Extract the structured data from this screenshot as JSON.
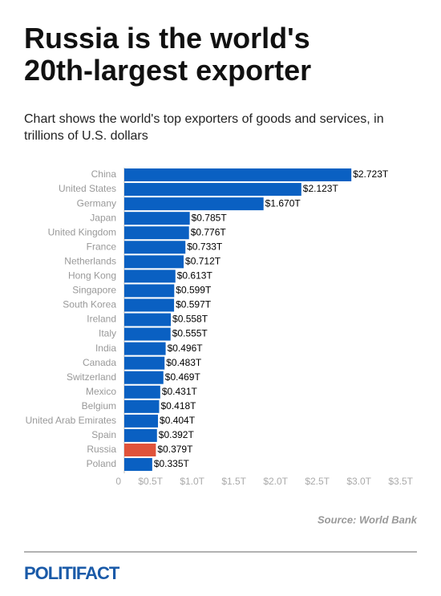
{
  "chart_data": {
    "type": "hbar",
    "title": "Russia is the world's 20th-largest exporter",
    "subtitle": "Chart shows the world's top exporters of goods and services, in trillions of U.S. dollars",
    "source": "Source: World Bank",
    "logo": "POLITIFACT",
    "categories": [
      "China",
      "United States",
      "Germany",
      "Japan",
      "United Kingdom",
      "France",
      "Netherlands",
      "Hong Kong",
      "Singapore",
      "South Korea",
      "Ireland",
      "Italy",
      "India",
      "Canada",
      "Switzerland",
      "Mexico",
      "Belgium",
      "United Arab Emirates",
      "Spain",
      "Russia",
      "Poland"
    ],
    "values": [
      2.723,
      2.123,
      1.67,
      0.785,
      0.776,
      0.733,
      0.712,
      0.613,
      0.599,
      0.597,
      0.558,
      0.555,
      0.496,
      0.483,
      0.469,
      0.431,
      0.418,
      0.404,
      0.392,
      0.379,
      0.335
    ],
    "value_labels": [
      "$2.723T",
      "$2.123T",
      "$1.670T",
      "$0.785T",
      "$0.776T",
      "$0.733T",
      "$0.712T",
      "$0.613T",
      "$0.599T",
      "$0.597T",
      "$0.558T",
      "$0.555T",
      "$0.496T",
      "$0.483T",
      "$0.469T",
      "$0.431T",
      "$0.418T",
      "$0.404T",
      "$0.392T",
      "$0.379T",
      "$0.335T"
    ],
    "colors": [
      "#0a60c2",
      "#0a60c2",
      "#0a60c2",
      "#0a60c2",
      "#0a60c2",
      "#0a60c2",
      "#0a60c2",
      "#0a60c2",
      "#0a60c2",
      "#0a60c2",
      "#0a60c2",
      "#0a60c2",
      "#0a60c2",
      "#0a60c2",
      "#0a60c2",
      "#0a60c2",
      "#0a60c2",
      "#0a60c2",
      "#0a60c2",
      "#e0533a",
      "#0a60c2"
    ],
    "xlim": [
      0,
      3.5
    ],
    "xticks": [
      0,
      {
        "value": 0.5,
        "label": "$0.5T"
      },
      {
        "value": 1.0,
        "label": "$1.0T"
      },
      {
        "value": 1.5,
        "label": "$1.5T"
      },
      {
        "value": 2.0,
        "label": "$2.0T"
      },
      {
        "value": 2.5,
        "label": "$2.5T"
      },
      {
        "value": 3.0,
        "label": "$3.0T"
      },
      {
        "value": 3.5,
        "label": "$3.5T"
      }
    ]
  }
}
